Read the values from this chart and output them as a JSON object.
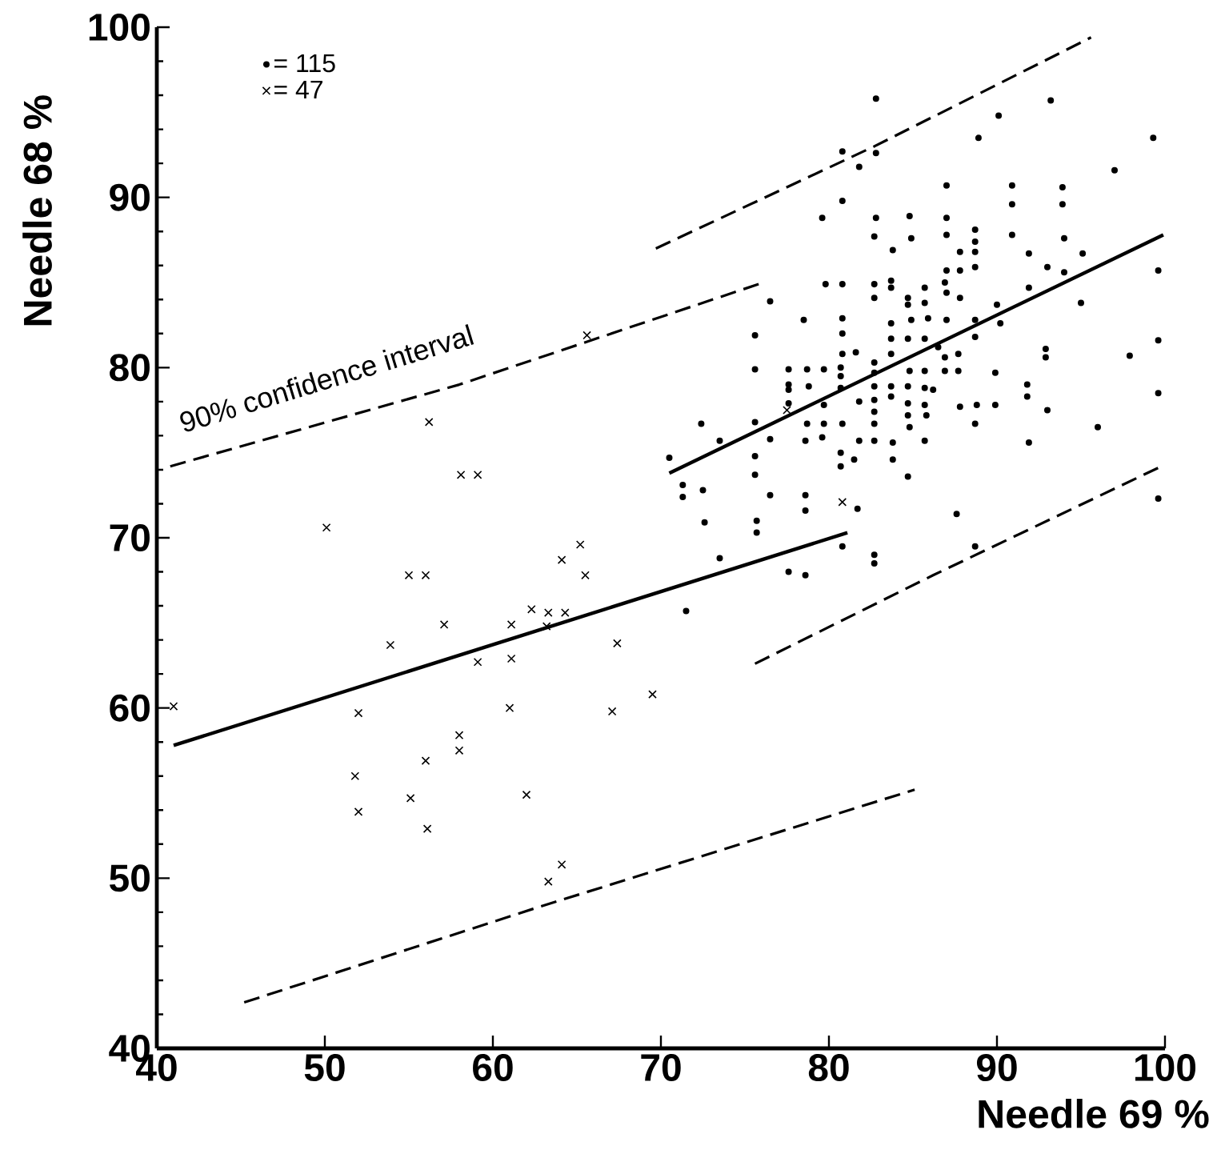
{
  "chart_data": {
    "type": "scatter",
    "xlabel": "Needle 69 %",
    "ylabel": "Needle 68 %",
    "xlim": [
      40,
      100
    ],
    "ylim": [
      40,
      100
    ],
    "xticks": [
      40,
      50,
      60,
      70,
      80,
      90,
      100
    ],
    "yticks": [
      40,
      50,
      60,
      70,
      80,
      90,
      100
    ],
    "grid": false,
    "legend": "top left",
    "annotations": [
      "90% confidence interval"
    ],
    "series": [
      {
        "name": "= 115",
        "color": "#000000",
        "marker": "circle",
        "x": [
          82.8,
          93.2,
          90.1,
          88.9,
          99.3,
          80.8,
          82.8,
          81.8,
          97.0,
          87.0,
          90.9,
          93.9,
          90.9,
          93.9,
          80.8,
          79.6,
          82.8,
          84.8,
          87.0,
          82.7,
          84.9,
          87.0,
          88.7,
          88.7,
          90.9,
          94.0,
          83.8,
          87.8,
          88.7,
          91.9,
          95.1,
          88.7,
          87.8,
          87.0,
          93.0,
          94.0,
          79.8,
          80.8,
          82.7,
          83.7,
          83.7,
          82.7,
          84.7,
          85.7,
          86.9,
          87.0,
          87.8,
          91.9,
          99.6,
          95.0,
          76.5,
          84.7,
          85.7,
          83.7,
          84.9,
          85.9,
          87.0,
          88.7,
          90.0,
          90.2,
          78.5,
          80.8,
          80.8,
          75.6,
          83.7,
          84.7,
          85.7,
          88.7,
          81.6,
          80.8,
          82.7,
          83.7,
          86.5,
          86.9,
          86.9,
          87.7,
          87.7,
          84.8,
          85.7,
          92.9,
          92.9,
          99.6,
          97.9,
          75.6,
          77.6,
          78.7,
          79.7,
          80.7,
          80.7,
          89.9,
          77.6,
          77.6,
          78.8,
          80.7,
          82.7,
          82.7,
          82.7,
          83.7,
          83.7,
          84.7,
          85.7,
          86.2,
          91.8,
          91.8,
          99.6,
          77.6,
          79.7,
          81.8,
          82.7,
          84.7,
          84.7,
          85.7,
          85.8,
          87.8,
          88.8,
          89.9,
          93.0,
          72.4,
          75.6,
          78.7,
          79.7,
          80.8,
          82.7,
          84.8,
          88.7,
          96.0,
          73.5,
          76.5,
          78.6,
          79.6,
          81.8,
          82.7,
          83.8,
          85.7,
          91.9,
          70.5,
          75.6,
          80.7,
          80.7,
          81.5,
          83.8,
          84.7,
          75.6,
          71.3,
          71.3,
          72.5,
          76.5,
          78.6,
          78.6,
          81.7,
          87.6,
          72.6,
          75.7,
          75.7,
          99.6,
          73.5,
          77.6,
          78.6,
          80.8,
          82.7,
          82.7,
          88.7,
          71.5
        ],
        "values": [
          95.8,
          95.7,
          94.8,
          93.5,
          93.5,
          92.7,
          92.6,
          91.8,
          91.6,
          90.7,
          90.7,
          90.6,
          89.6,
          89.6,
          89.8,
          88.8,
          88.8,
          88.9,
          88.8,
          87.7,
          87.6,
          87.8,
          88.1,
          87.4,
          87.8,
          87.6,
          86.9,
          86.8,
          86.8,
          86.7,
          86.7,
          85.9,
          85.7,
          85.7,
          85.9,
          85.6,
          84.9,
          84.9,
          84.9,
          85.1,
          84.7,
          84.1,
          84.1,
          84.7,
          85.0,
          84.4,
          84.1,
          84.7,
          85.7,
          83.8,
          83.9,
          83.7,
          83.8,
          82.6,
          82.8,
          82.9,
          82.8,
          82.8,
          83.7,
          82.6,
          82.8,
          82.9,
          82.0,
          81.9,
          81.7,
          81.7,
          81.7,
          81.8,
          80.9,
          80.8,
          80.3,
          80.8,
          81.2,
          80.6,
          79.8,
          80.8,
          79.8,
          79.8,
          79.8,
          81.1,
          80.6,
          81.6,
          80.7,
          79.9,
          79.9,
          79.9,
          79.9,
          80.0,
          79.5,
          79.7,
          79.0,
          78.7,
          78.9,
          78.8,
          79.7,
          78.9,
          78.1,
          78.9,
          78.3,
          78.9,
          78.8,
          78.7,
          79.0,
          78.3,
          78.5,
          77.9,
          77.8,
          78.0,
          77.4,
          77.9,
          77.2,
          77.8,
          77.2,
          77.7,
          77.8,
          77.8,
          77.5,
          76.7,
          76.8,
          76.7,
          76.7,
          76.7,
          76.7,
          76.5,
          76.7,
          76.5,
          75.7,
          75.8,
          75.7,
          75.9,
          75.7,
          75.7,
          75.6,
          75.7,
          75.6,
          74.7,
          74.8,
          75.0,
          74.2,
          74.6,
          74.6,
          73.6,
          73.7,
          73.1,
          72.4,
          72.8,
          72.5,
          72.5,
          71.6,
          71.7,
          71.4,
          70.9,
          71.0,
          70.3,
          72.3,
          68.8,
          68.0,
          67.8,
          69.5,
          69.0,
          68.5,
          69.5,
          65.7
        ]
      },
      {
        "name": "=  47",
        "color": "#000000",
        "marker": "cross",
        "x": [
          41.0,
          50.1,
          52.0,
          51.8,
          52.0,
          53.9,
          55.0,
          56.0,
          56.2,
          55.1,
          56.0,
          56.1,
          57.1,
          58.1,
          59.1,
          58.0,
          58.0,
          59.1,
          61.1,
          61.1,
          61.0,
          62.0,
          62.3,
          63.3,
          64.3,
          63.2,
          64.1,
          65.2,
          65.5,
          67.4,
          67.1,
          69.5,
          63.3,
          64.1,
          65.6,
          77.5,
          80.8
        ],
        "values": [
          60.1,
          70.6,
          59.7,
          56.0,
          53.9,
          63.7,
          67.8,
          67.8,
          76.8,
          54.7,
          56.9,
          52.9,
          64.9,
          73.7,
          73.7,
          58.4,
          57.5,
          62.7,
          64.9,
          62.9,
          60.0,
          54.9,
          65.8,
          65.6,
          65.6,
          64.8,
          68.7,
          69.6,
          67.8,
          63.8,
          59.8,
          60.8,
          49.8,
          50.8,
          81.9,
          77.5,
          72.1
        ]
      },
      {
        "type": "line",
        "color": "#000000",
        "marker": "none",
        "line_style": "solid",
        "x": [
          70.5,
          99.9
        ],
        "values": [
          73.8,
          87.8
        ]
      },
      {
        "type": "line",
        "color": "#000000",
        "marker": "none",
        "line_style": "solid",
        "x": [
          41.0,
          81.1
        ],
        "values": [
          57.8,
          70.3
        ]
      },
      {
        "type": "line",
        "color": "#000000",
        "marker": "none",
        "line_style": "dashed",
        "x": [
          69.7,
          82.7,
          95.6
        ],
        "values": [
          87.0,
          93.0,
          99.4
        ]
      },
      {
        "type": "line",
        "color": "#000000",
        "marker": "none",
        "line_style": "dashed",
        "x": [
          75.6,
          86.2,
          100
        ],
        "values": [
          62.6,
          67.8,
          74.3
        ]
      },
      {
        "type": "line",
        "color": "#000000",
        "marker": "none",
        "line_style": "dashed",
        "x": [
          40.8,
          58.0,
          76.1
        ],
        "values": [
          74.2,
          79.0,
          85.0
        ]
      },
      {
        "type": "line",
        "color": "#000000",
        "marker": "none",
        "line_style": "dashed",
        "x": [
          45.2,
          62.4,
          85.1
        ],
        "values": [
          42.7,
          48.2,
          55.2
        ]
      }
    ]
  }
}
